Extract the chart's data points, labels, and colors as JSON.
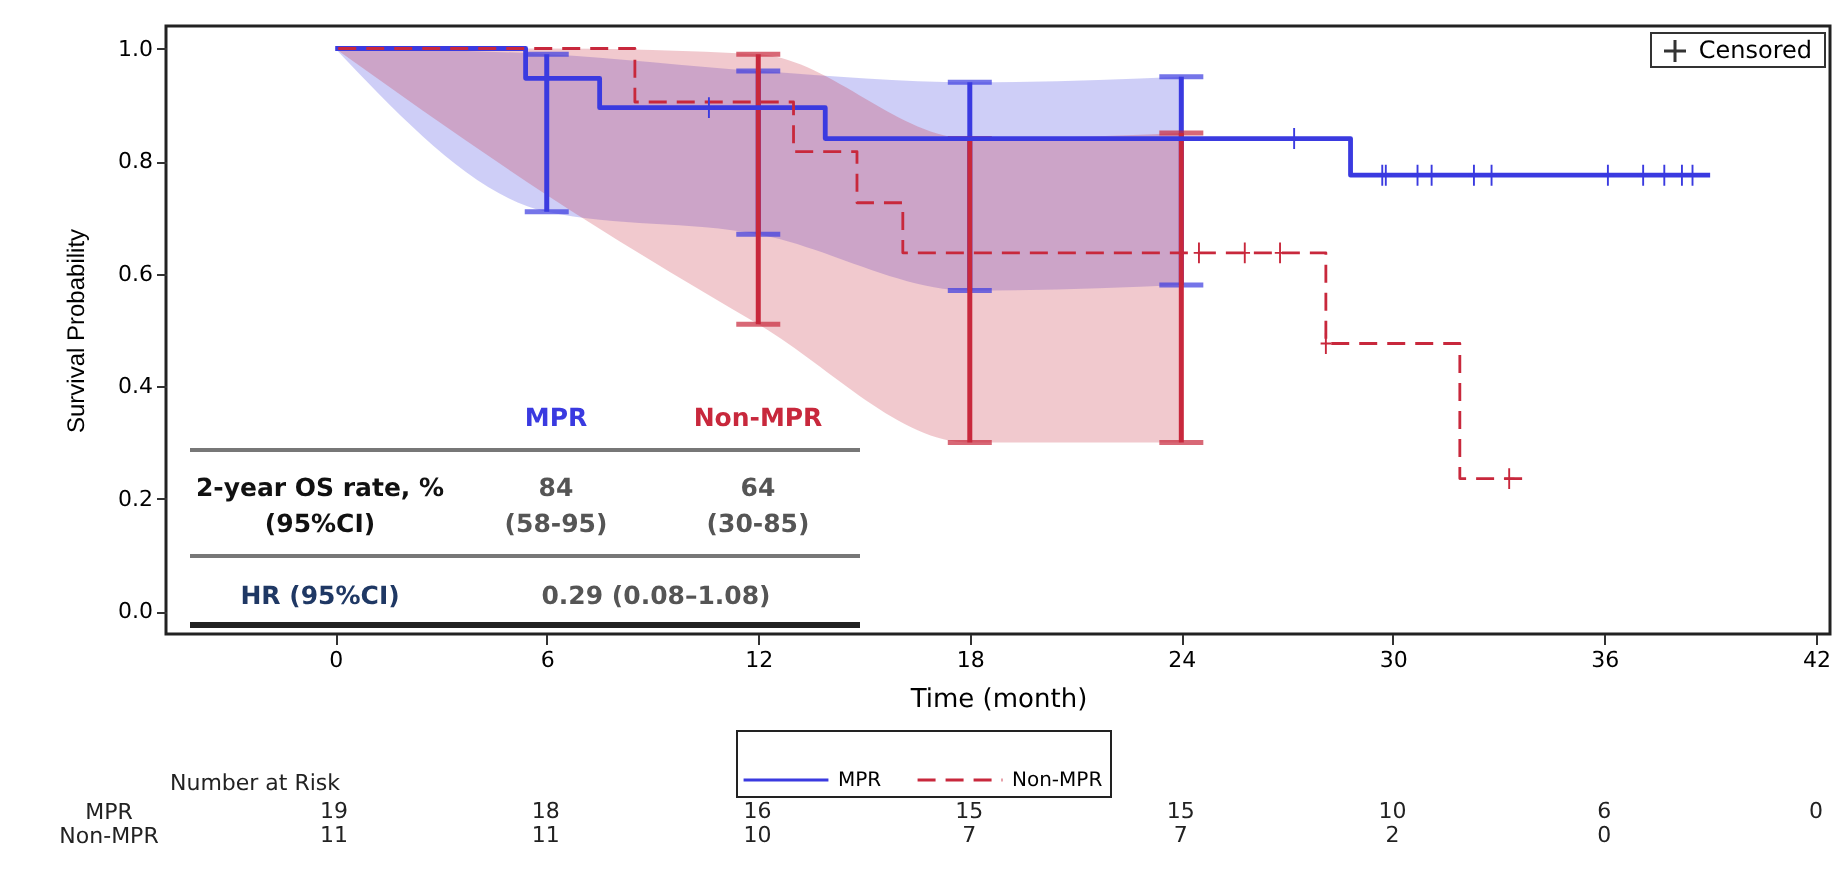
{
  "chart_data": [
    {
      "type": "step",
      "xlabel": "Time (month)",
      "ylabel": "Survival Probability",
      "xlim": [
        -4.8,
        42.4
      ],
      "ylim": [
        -0.04,
        1.04
      ],
      "xticks": [
        0,
        6,
        12,
        18,
        24,
        30,
        36,
        42
      ],
      "yticks": [
        {
          "value": 0,
          "label": "0.0"
        },
        0.2,
        0.4,
        0.6,
        0.8,
        {
          "value": 1,
          "label": "1.0"
        }
      ],
      "legend": "bottom",
      "grid": false,
      "series": [
        {
          "name": "MPR",
          "color": "#3a3ae0",
          "line_style": "solid",
          "x": [
            0,
            5.4,
            6,
            7.5,
            12,
            13.9,
            18,
            24,
            28.8,
            39.0
          ],
          "values": [
            1,
            0.947,
            0.947,
            0.895,
            0.895,
            0.84,
            0.84,
            0.84,
            0.775,
            0.775
          ],
          "lower": [
            1,
            null,
            0.71,
            null,
            0.67,
            null,
            0.57,
            0.58,
            null,
            null
          ],
          "upper": [
            1,
            null,
            0.99,
            null,
            0.96,
            null,
            0.94,
            0.95,
            null,
            null
          ],
          "errors": [
            null,
            null,
            [
              0.71,
              0.99
            ],
            null,
            [
              0.67,
              0.96
            ],
            null,
            [
              0.57,
              0.94
            ],
            [
              0.58,
              0.95
            ],
            null,
            null
          ]
        },
        {
          "name": "Non-MPR",
          "color": "#c8283c",
          "line_style": "dashed",
          "x": [
            0,
            6,
            8.5,
            12,
            13.0,
            14.8,
            16.1,
            18,
            24,
            28.1,
            31.9,
            33.8
          ],
          "values": [
            1,
            1,
            0.905,
            0.905,
            0.817,
            0.726,
            0.637,
            0.637,
            0.637,
            0.476,
            0.236,
            0.236
          ],
          "lower": [
            1,
            0.74,
            null,
            0.51,
            null,
            null,
            null,
            0.3,
            0.3,
            null,
            null,
            null
          ],
          "upper": [
            1,
            1,
            null,
            0.99,
            null,
            null,
            null,
            0.84,
            0.85,
            null,
            null,
            null
          ],
          "errors": [
            null,
            null,
            null,
            [
              0.51,
              0.99
            ],
            null,
            null,
            null,
            [
              0.3,
              0.84
            ],
            [
              0.3,
              0.85
            ],
            null,
            null,
            null
          ]
        },
        {
          "type": "scatter",
          "marker": "cross",
          "color": "#3a3ae0",
          "x": [
            10.6,
            27.2,
            29.7,
            29.8,
            30.7,
            31.1,
            32.3,
            32.8,
            36.1,
            37.1,
            37.7,
            38.2,
            38.5
          ],
          "values": [
            0.895,
            0.84,
            0.775,
            0.775,
            0.775,
            0.775,
            0.775,
            0.775,
            0.775,
            0.775,
            0.775,
            0.775,
            0.775
          ]
        },
        {
          "type": "scatter",
          "marker": "cross",
          "color": "#c8283c",
          "x": [
            24.5,
            25.8,
            26.8,
            28.1,
            33.3
          ],
          "values": [
            0.637,
            0.637,
            0.637,
            0.476,
            0.236
          ]
        }
      ],
      "annotations": [
        "MPR",
        "Non-MPR",
        "2-year OS rate, %",
        "(95%CI)",
        "84",
        "(58-95)",
        "64",
        "(30-85)",
        "HR (95%CI)",
        "0.29 (0.08–1.08)",
        "Censored"
      ]
    },
    {
      "type": "heatmap",
      "title": "Number at Risk",
      "categories": [
        "0",
        "6",
        "12",
        "18",
        "24",
        "30",
        "36",
        "42"
      ],
      "y_categories": [
        "MPR",
        "Non-MPR"
      ],
      "cells": [
        [
          19,
          18,
          16,
          15,
          15,
          10,
          6,
          0
        ],
        [
          11,
          11,
          10,
          7,
          7,
          2,
          0,
          null
        ]
      ],
      "data_labels": true,
      "tick_labels": "y"
    }
  ]
}
